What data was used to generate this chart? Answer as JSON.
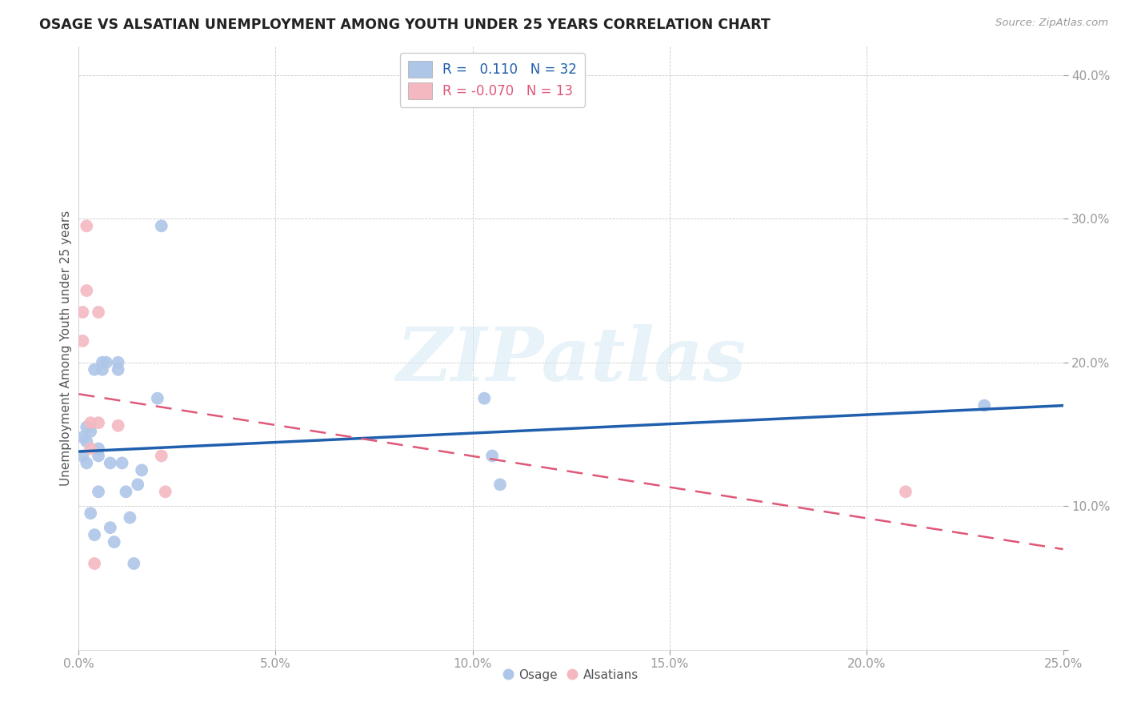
{
  "title": "OSAGE VS ALSATIAN UNEMPLOYMENT AMONG YOUTH UNDER 25 YEARS CORRELATION CHART",
  "source": "Source: ZipAtlas.com",
  "ylabel": "Unemployment Among Youth under 25 years",
  "xlim": [
    0.0,
    25.0
  ],
  "ylim": [
    0.0,
    42.0
  ],
  "xticks": [
    0.0,
    5.0,
    10.0,
    15.0,
    20.0,
    25.0
  ],
  "yticks": [
    0.0,
    10.0,
    20.0,
    30.0,
    40.0
  ],
  "xticklabels": [
    "0.0%",
    "5.0%",
    "10.0%",
    "15.0%",
    "20.0%",
    "25.0%"
  ],
  "yticklabels": [
    "",
    "10.0%",
    "20.0%",
    "30.0%",
    "40.0%"
  ],
  "osage_x": [
    0.1,
    0.1,
    0.2,
    0.2,
    0.2,
    0.3,
    0.3,
    0.4,
    0.4,
    0.5,
    0.5,
    0.5,
    0.6,
    0.6,
    0.7,
    0.8,
    0.8,
    0.9,
    1.0,
    1.0,
    1.1,
    1.2,
    1.3,
    1.4,
    1.5,
    1.6,
    2.0,
    2.1,
    10.5,
    10.7,
    23.0,
    10.3
  ],
  "osage_y": [
    13.5,
    14.8,
    15.5,
    13.0,
    14.5,
    15.2,
    9.5,
    8.0,
    19.5,
    13.5,
    11.0,
    14.0,
    19.5,
    20.0,
    20.0,
    13.0,
    8.5,
    7.5,
    19.5,
    20.0,
    13.0,
    11.0,
    9.2,
    6.0,
    11.5,
    12.5,
    17.5,
    29.5,
    13.5,
    11.5,
    17.0,
    17.5
  ],
  "alsatian_x": [
    0.1,
    0.1,
    0.2,
    0.2,
    0.3,
    0.3,
    0.4,
    0.5,
    0.5,
    1.0,
    2.1,
    2.2,
    21.0
  ],
  "alsatian_y": [
    21.5,
    23.5,
    25.0,
    29.5,
    14.0,
    15.8,
    6.0,
    15.8,
    23.5,
    15.6,
    13.5,
    11.0,
    11.0
  ],
  "osage_color": "#aec6e8",
  "alsatian_color": "#f4b8c1",
  "osage_line_color": "#1f5fad",
  "alsatian_line_color": "#e05878",
  "osage_R": 0.11,
  "osage_N": 32,
  "alsatian_R": -0.07,
  "alsatian_N": 13,
  "osage_line_start_y": 13.8,
  "osage_line_end_y": 17.0,
  "alsatian_line_start_y": 17.8,
  "alsatian_line_end_y": 7.0,
  "watermark_text": "ZIPatlas",
  "background_color": "#ffffff",
  "grid_color": "#c8c8c8",
  "title_color": "#222222",
  "tick_color": "#4472c4"
}
